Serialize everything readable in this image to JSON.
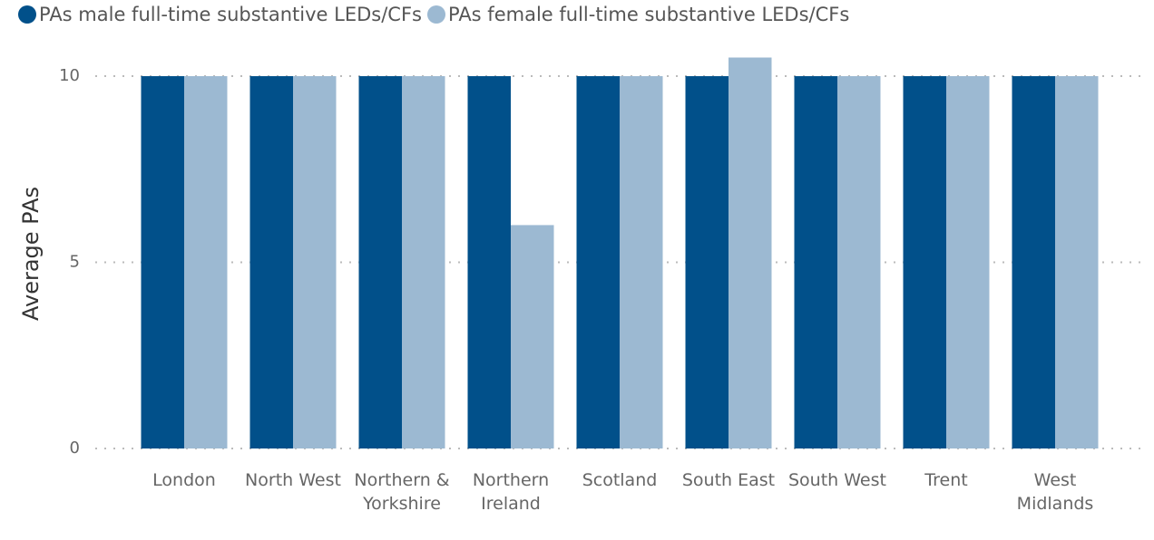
{
  "chart_data": {
    "type": "bar",
    "categories": [
      "London",
      "North West",
      "Northern & Yorkshire",
      "Northern Ireland",
      "Scotland",
      "South East",
      "South West",
      "Trent",
      "West Midlands"
    ],
    "series": [
      {
        "name": "PAs male full-time substantive LEDs/CFs",
        "color": "#01508a",
        "values": [
          10,
          10,
          10,
          10,
          10,
          10,
          10,
          10,
          10
        ]
      },
      {
        "name": "PAs female full-time substantive LEDs/CFs",
        "color": "#9cb9d2",
        "values": [
          10,
          10,
          10,
          6,
          10,
          10.5,
          10,
          10,
          10
        ]
      }
    ],
    "ylabel": "Average PAs",
    "ylim": [
      0,
      10.5
    ],
    "yticks": [
      0,
      5,
      10
    ],
    "grid": true,
    "legend": "top"
  }
}
